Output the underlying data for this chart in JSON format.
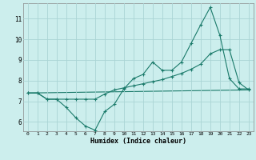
{
  "xlabel": "Humidex (Indice chaleur)",
  "background_color": "#cceeed",
  "grid_color": "#aad4d4",
  "line_color": "#1a7a6a",
  "xlim": [
    -0.5,
    23.5
  ],
  "ylim": [
    5.55,
    11.75
  ],
  "xticks": [
    0,
    1,
    2,
    3,
    4,
    5,
    6,
    7,
    8,
    9,
    10,
    11,
    12,
    13,
    14,
    15,
    16,
    17,
    18,
    19,
    20,
    21,
    22,
    23
  ],
  "yticks": [
    6,
    7,
    8,
    9,
    10,
    11
  ],
  "line1_x": [
    0,
    1,
    2,
    3,
    4,
    5,
    6,
    7,
    8,
    9,
    10,
    11,
    12,
    13,
    14,
    15,
    16,
    17,
    18,
    19,
    20,
    21,
    22,
    23
  ],
  "line1_y": [
    7.4,
    7.4,
    7.1,
    7.1,
    6.7,
    6.2,
    5.8,
    5.6,
    6.5,
    6.85,
    7.6,
    8.1,
    8.3,
    8.9,
    8.5,
    8.5,
    8.9,
    9.8,
    10.7,
    11.55,
    10.2,
    8.1,
    7.6,
    7.6
  ],
  "line2_x": [
    0,
    1,
    2,
    3,
    4,
    5,
    6,
    7,
    8,
    9,
    10,
    11,
    12,
    13,
    14,
    15,
    16,
    17,
    18,
    19,
    20,
    21,
    22,
    23
  ],
  "line2_y": [
    7.4,
    7.4,
    7.1,
    7.1,
    7.1,
    7.1,
    7.1,
    7.1,
    7.35,
    7.55,
    7.65,
    7.75,
    7.85,
    7.95,
    8.05,
    8.2,
    8.35,
    8.55,
    8.8,
    9.3,
    9.5,
    9.5,
    7.9,
    7.55
  ],
  "line3_x": [
    0,
    23
  ],
  "line3_y": [
    7.4,
    7.55
  ]
}
